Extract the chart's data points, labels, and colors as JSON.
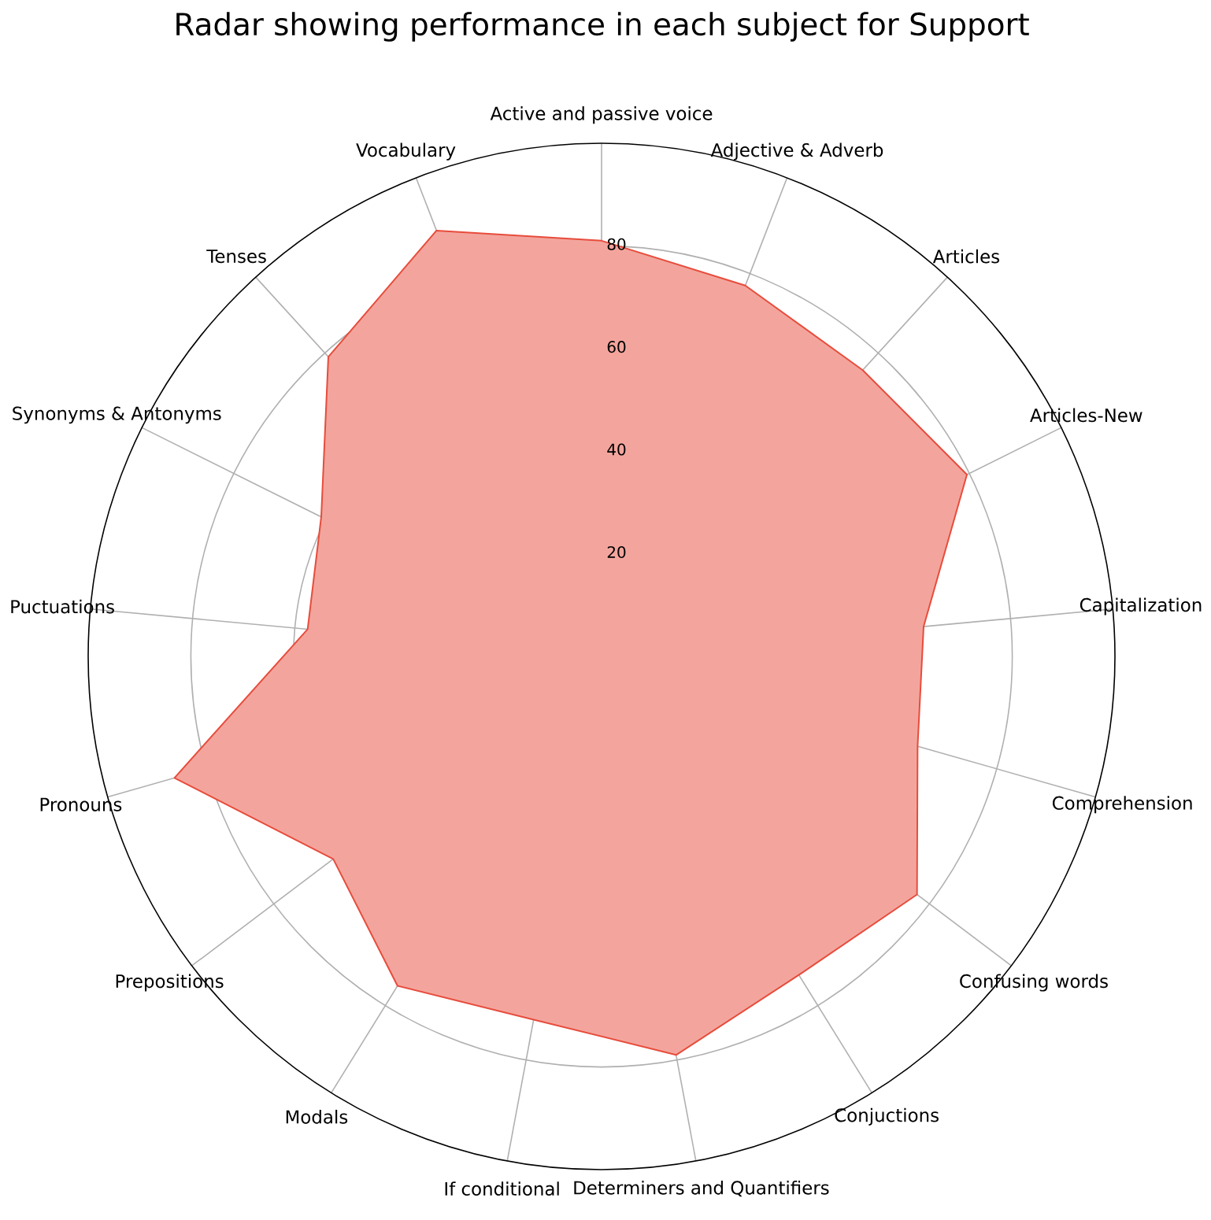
{
  "chart_data": {
    "type": "radar",
    "title": "Radar showing performance in each subject for Support",
    "categories": [
      "Active and passive voice",
      "Adjective & Adverb",
      "Articles",
      "Articles-New",
      "Capitalization",
      "Comprehension",
      "Confusing words",
      "Conjuctions",
      "Determiners and Quantifiers",
      "If conditional",
      "Modals",
      "Prepositions",
      "Pronouns",
      "Puctuations",
      "Synonyms & Antonyms",
      "Tenses",
      "Vocabulary"
    ],
    "series": [
      {
        "color": "#e74c3c",
        "values": [
          81,
          77.5,
          75.5,
          79.5,
          63,
          64,
          77,
          73,
          79,
          72,
          75.5,
          65.5,
          86.5,
          57.5,
          61,
          79,
          89
        ]
      }
    ],
    "ylim": [
      0,
      100
    ],
    "yticks": [
      20,
      40,
      60,
      80
    ],
    "grid": true
  }
}
